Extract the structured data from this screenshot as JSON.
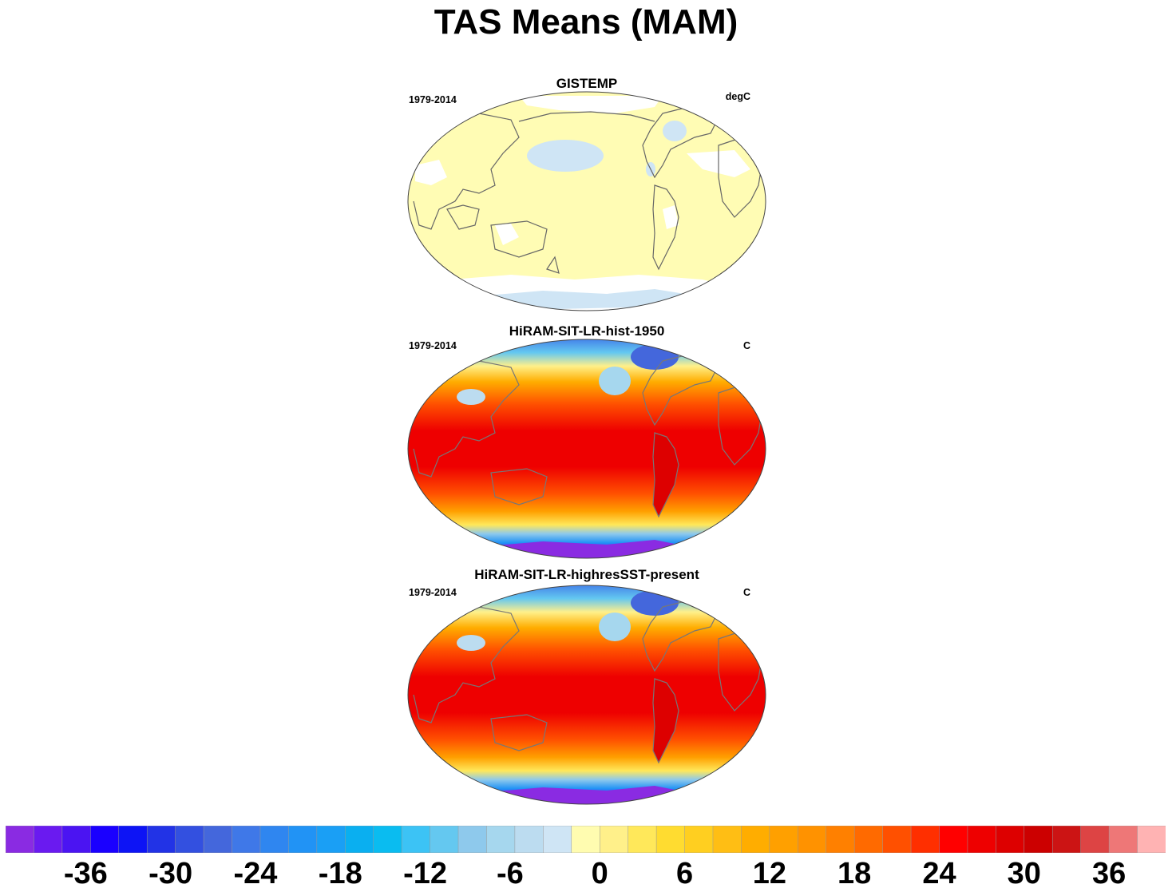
{
  "title": "TAS Means (MAM)",
  "panels": [
    {
      "title": "GISTEMP",
      "left": "1979-2014",
      "right": "degC",
      "fill": "obs"
    },
    {
      "title": "HiRAM-SIT-LR-hist-1950",
      "left": "1979-2014",
      "right": "C",
      "fill": "model"
    },
    {
      "title": "HiRAM-SIT-LR-highresSST-present",
      "left": "1979-2014",
      "right": "C",
      "fill": "model"
    }
  ],
  "colorbar": {
    "colors": [
      "#8a2be2",
      "#6a1af0",
      "#4b14f2",
      "#1a00ff",
      "#0d14f5",
      "#2233e6",
      "#3350e0",
      "#4467dc",
      "#3f78e8",
      "#2f86f0",
      "#2193f5",
      "#1a9ff5",
      "#0aaff0",
      "#0abcf0",
      "#3cc3f5",
      "#64c8f0",
      "#8ec9ec",
      "#a6d7ee",
      "#bcdcf0",
      "#cfe5f5",
      "#fffcb0",
      "#fff08a",
      "#ffe85a",
      "#ffdc30",
      "#ffcf20",
      "#ffbe14",
      "#ffad00",
      "#ffa000",
      "#ff9200",
      "#ff8000",
      "#ff6a00",
      "#ff5000",
      "#ff2f00",
      "#ff0000",
      "#ee0000",
      "#dd0000",
      "#cc0000",
      "#cc1414",
      "#dd4444",
      "#ee7777",
      "#ffb3b3"
    ],
    "tick_labels": [
      "-36",
      "-30",
      "-24",
      "-18",
      "-12",
      "-6",
      "0",
      "6",
      "12",
      "18",
      "24",
      "30",
      "36"
    ]
  }
}
